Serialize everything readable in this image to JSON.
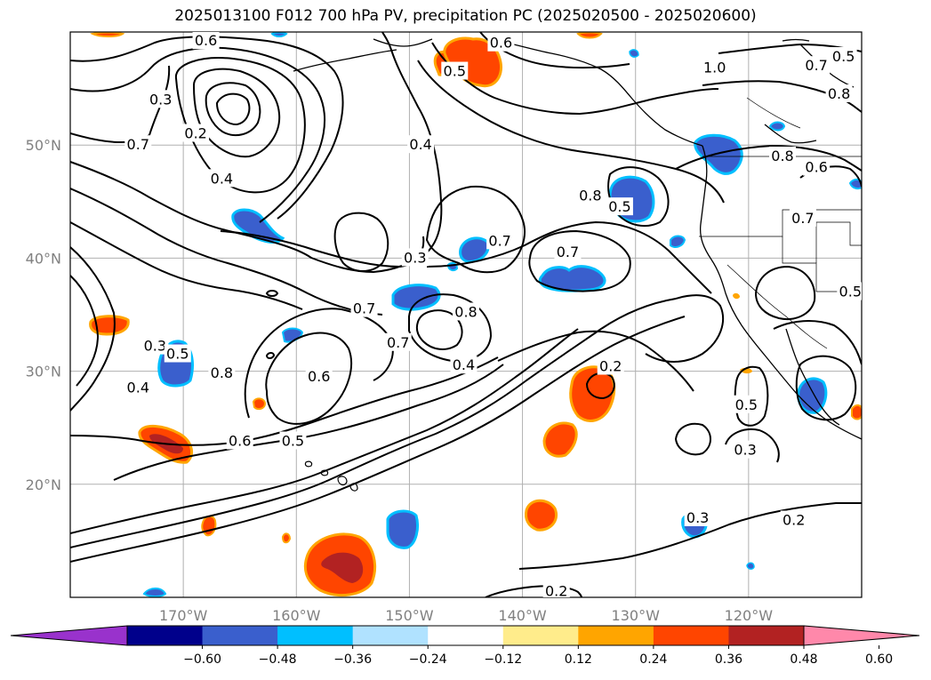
{
  "title": "2025013100 F012 700 hPa PV, precipitation PC (2025020500 - 2025020600)",
  "map": {
    "projection": "PlateCarree",
    "lon_range": [
      -180,
      -110
    ],
    "lat_range": [
      10,
      60
    ],
    "grid": true,
    "lat_ticks": [
      {
        "value": 20,
        "label": "20°N"
      },
      {
        "value": 30,
        "label": "30°N"
      },
      {
        "value": 40,
        "label": "40°N"
      },
      {
        "value": 50,
        "label": "50°N"
      }
    ],
    "lon_ticks": [
      {
        "value": -170,
        "label": "170°W"
      },
      {
        "value": -160,
        "label": "160°W"
      },
      {
        "value": -150,
        "label": "150°W"
      },
      {
        "value": -140,
        "label": "140°W"
      },
      {
        "value": -130,
        "label": "130°W"
      },
      {
        "value": -120,
        "label": "120°W"
      }
    ],
    "contour_labels": [
      {
        "text": "0.6",
        "lon": -168.0,
        "lat": 59.2
      },
      {
        "text": "0.3",
        "lon": -172.0,
        "lat": 54.0
      },
      {
        "text": "0.2",
        "lon": -168.9,
        "lat": 51.0
      },
      {
        "text": "0.7",
        "lon": -174.0,
        "lat": 50.0
      },
      {
        "text": "0.4",
        "lon": -166.6,
        "lat": 47.0
      },
      {
        "text": "0.4",
        "lon": -149.0,
        "lat": 50.0
      },
      {
        "text": "0.3",
        "lon": -149.5,
        "lat": 40.0
      },
      {
        "text": "0.6",
        "lon": -141.9,
        "lat": 59.0
      },
      {
        "text": "0.5",
        "lon": -146.0,
        "lat": 56.5
      },
      {
        "text": "0.8",
        "lon": -134.0,
        "lat": 45.5
      },
      {
        "text": "0.7",
        "lon": -142.0,
        "lat": 41.5
      },
      {
        "text": "0.7",
        "lon": -136.0,
        "lat": 40.5
      },
      {
        "text": "0.5",
        "lon": -131.4,
        "lat": 44.5
      },
      {
        "text": "1.0",
        "lon": -123.0,
        "lat": 56.8
      },
      {
        "text": "0.7",
        "lon": -114.0,
        "lat": 57.0
      },
      {
        "text": "0.8",
        "lon": -112.0,
        "lat": 54.5
      },
      {
        "text": "0.8",
        "lon": -117.0,
        "lat": 49.0
      },
      {
        "text": "0.6",
        "lon": -114.0,
        "lat": 48.0
      },
      {
        "text": "0.7",
        "lon": -115.2,
        "lat": 43.5
      },
      {
        "text": "0.8",
        "lon": -145.0,
        "lat": 35.2
      },
      {
        "text": "0.7",
        "lon": -154.0,
        "lat": 35.5
      },
      {
        "text": "0.7",
        "lon": -151.0,
        "lat": 32.5
      },
      {
        "text": "0.6",
        "lon": -158.0,
        "lat": 29.5
      },
      {
        "text": "0.8",
        "lon": -166.6,
        "lat": 29.8
      },
      {
        "text": "0.4",
        "lon": -145.2,
        "lat": 30.5
      },
      {
        "text": "0.2",
        "lon": -132.2,
        "lat": 30.4
      },
      {
        "text": "0.5",
        "lon": -120.2,
        "lat": 27.0
      },
      {
        "text": "0.3",
        "lon": -120.3,
        "lat": 23.0
      },
      {
        "text": "0.3",
        "lon": -172.5,
        "lat": 32.2
      },
      {
        "text": "0.4",
        "lon": -174.0,
        "lat": 28.5
      },
      {
        "text": "0.5",
        "lon": -170.5,
        "lat": 31.5
      },
      {
        "text": "0.6",
        "lon": -165.0,
        "lat": 23.8
      },
      {
        "text": "0.5",
        "lon": -160.3,
        "lat": 23.8
      },
      {
        "text": "0.3",
        "lon": -124.5,
        "lat": 17.0
      },
      {
        "text": "0.2",
        "lon": -116.0,
        "lat": 16.8
      },
      {
        "text": "0.2",
        "lon": -137.0,
        "lat": 10.5
      },
      {
        "text": "0.5",
        "lon": -111.0,
        "lat": 37.0
      },
      {
        "text": "0.5",
        "lon": -111.6,
        "lat": 57.8
      }
    ]
  },
  "colorbar": {
    "colors": [
      "#9932CC",
      "#00008B",
      "#3A5FCD",
      "#00BFFF",
      "#B0E2FF",
      "#FFFFFF",
      "#FFEC8B",
      "#FFA500",
      "#FF4500",
      "#B22222",
      "#FF88AA"
    ],
    "ticks": [
      "−0.60",
      "−0.48",
      "−0.36",
      "−0.24",
      "−0.12",
      "0.12",
      "0.24",
      "0.36",
      "0.48",
      "0.60"
    ],
    "extend": "both"
  }
}
